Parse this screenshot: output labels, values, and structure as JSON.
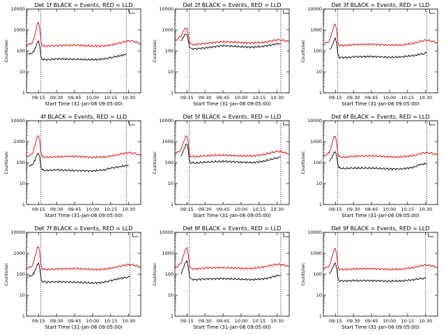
{
  "colors": {
    "events": "#000000",
    "lld": "#e00000",
    "axis": "#000000",
    "background": "#ffffff"
  },
  "chart_data": [
    {
      "type": "line",
      "title": "Det 1f BLACK = Events, RED = LLD",
      "xlabel": "Start Time (31-Jan-06 09:05:00)",
      "ylabel": "Counts/sec",
      "yscale": "log",
      "ylim": [
        1,
        10000
      ],
      "xlim": [
        "09:05",
        "10:40"
      ],
      "xticks": [
        "09:15",
        "09:30",
        "09:45",
        "10:00",
        "10:15",
        "10:30"
      ],
      "yticks": [
        "1",
        "10",
        "100",
        "1000",
        "10000"
      ],
      "markers": [
        "09:17",
        "10:28"
      ],
      "series": [
        {
          "name": "Events",
          "x": [
            "09:07",
            "09:10",
            "09:12",
            "09:14",
            "09:15",
            "09:16",
            "09:17",
            "09:18",
            "09:22",
            "09:30",
            "09:45",
            "10:00",
            "10:10",
            "10:15",
            "10:20",
            "10:26",
            "10:28"
          ],
          "values": [
            70,
            80,
            120,
            250,
            280,
            170,
            60,
            40,
            38,
            42,
            40,
            38,
            42,
            48,
            55,
            65,
            70
          ]
        },
        {
          "name": "LLD",
          "x": [
            "09:05",
            "09:10",
            "09:12",
            "09:14",
            "09:15",
            "09:16",
            "09:17",
            "09:18",
            "09:22",
            "09:30",
            "09:45",
            "10:00",
            "10:10",
            "10:20",
            "10:25",
            "10:30",
            "10:35",
            "10:40"
          ],
          "values": [
            180,
            250,
            600,
            1900,
            2100,
            1200,
            300,
            180,
            170,
            180,
            190,
            170,
            175,
            220,
            260,
            310,
            280,
            220
          ]
        }
      ]
    },
    {
      "type": "line",
      "title": "Det 2f BLACK = Events, RED = LLD",
      "xlabel": "Start Time (31-Jan-06 09:05:00)",
      "ylabel": "Counts/sec",
      "yscale": "log",
      "ylim": [
        1,
        10000
      ],
      "xlim": [
        "09:05",
        "10:40"
      ],
      "xticks": [
        "09:15",
        "09:30",
        "09:45",
        "10:00",
        "10:15",
        "10:30"
      ],
      "yticks": [
        "1",
        "10",
        "100",
        "1000",
        "10000"
      ],
      "markers": [
        "09:17",
        "10:33"
      ],
      "series": [
        {
          "name": "Events",
          "x": [
            "09:10",
            "09:12",
            "09:14",
            "09:15",
            "09:16",
            "09:17",
            "09:18",
            "09:22",
            "09:30",
            "09:45",
            "10:00",
            "10:10",
            "10:20",
            "10:28",
            "10:33"
          ],
          "values": [
            300,
            450,
            700,
            600,
            350,
            160,
            130,
            125,
            140,
            180,
            160,
            150,
            170,
            210,
            230
          ]
        },
        {
          "name": "LLD",
          "x": [
            "09:05",
            "09:10",
            "09:12",
            "09:14",
            "09:15",
            "09:16",
            "09:17",
            "09:18",
            "09:22",
            "09:30",
            "09:45",
            "10:00",
            "10:10",
            "10:20",
            "10:25",
            "10:30",
            "10:35",
            "10:40"
          ],
          "values": [
            300,
            500,
            900,
            1300,
            1200,
            700,
            300,
            210,
            200,
            230,
            280,
            250,
            240,
            260,
            300,
            340,
            320,
            280
          ]
        }
      ]
    },
    {
      "type": "line",
      "title": "Det 3f BLACK = Events, RED = LLD",
      "xlabel": "Start Time (31-Jan-06 09:05:00)",
      "ylabel": "Counts/sec",
      "yscale": "log",
      "ylim": [
        1,
        10000
      ],
      "xlim": [
        "09:05",
        "10:40"
      ],
      "xticks": [
        "09:15",
        "09:30",
        "09:45",
        "10:00",
        "10:15",
        "10:30"
      ],
      "yticks": [
        "1",
        "10",
        "100",
        "1000",
        "10000"
      ],
      "markers": [
        "09:17",
        "10:31"
      ],
      "series": [
        {
          "name": "Events",
          "x": [
            "09:10",
            "09:12",
            "09:14",
            "09:15",
            "09:16",
            "09:17",
            "09:18",
            "09:22",
            "09:30",
            "09:45",
            "10:00",
            "10:10",
            "10:20",
            "10:26",
            "10:31"
          ],
          "values": [
            110,
            160,
            320,
            400,
            230,
            80,
            50,
            48,
            52,
            55,
            50,
            52,
            60,
            70,
            80
          ]
        },
        {
          "name": "LLD",
          "x": [
            "09:05",
            "09:10",
            "09:12",
            "09:14",
            "09:15",
            "09:16",
            "09:17",
            "09:18",
            "09:22",
            "09:30",
            "09:45",
            "10:00",
            "10:10",
            "10:20",
            "10:25",
            "10:30",
            "10:35",
            "10:40"
          ],
          "values": [
            200,
            300,
            700,
            1700,
            1800,
            1000,
            280,
            190,
            180,
            200,
            210,
            190,
            190,
            230,
            280,
            330,
            300,
            240
          ]
        }
      ]
    },
    {
      "type": "line",
      "title": "4f BLACK = Events, RED = LLD",
      "xlabel": "Start Time (31-Jan-06 09:05:00)",
      "ylabel": "Counts/sec",
      "yscale": "log",
      "ylim": [
        1,
        10000
      ],
      "xlim": [
        "09:05",
        "10:40"
      ],
      "xticks": [
        "09:15",
        "09:30",
        "09:45",
        "10:00",
        "10:15",
        "10:30"
      ],
      "yticks": [
        "1",
        "10",
        "100",
        "1000",
        "10000"
      ],
      "markers": [
        "09:17",
        "10:28"
      ],
      "series": [
        {
          "name": "Events",
          "x": [
            "09:07",
            "09:10",
            "09:12",
            "09:14",
            "09:15",
            "09:16",
            "09:17",
            "09:18",
            "09:22",
            "09:30",
            "09:45",
            "10:00",
            "10:10",
            "10:15",
            "10:20",
            "10:26",
            "10:30"
          ],
          "values": [
            70,
            80,
            130,
            260,
            300,
            180,
            60,
            45,
            42,
            45,
            42,
            40,
            45,
            55,
            60,
            70,
            75
          ]
        },
        {
          "name": "LLD",
          "x": [
            "09:05",
            "09:10",
            "09:12",
            "09:14",
            "09:15",
            "09:16",
            "09:17",
            "09:18",
            "09:22",
            "09:30",
            "09:45",
            "10:00",
            "10:10",
            "10:20",
            "10:25",
            "10:30",
            "10:35",
            "10:40"
          ],
          "values": [
            190,
            260,
            650,
            1900,
            2000,
            1100,
            290,
            190,
            180,
            190,
            200,
            180,
            185,
            230,
            270,
            300,
            280,
            220
          ]
        }
      ]
    },
    {
      "type": "line",
      "title": "Det 5f BLACK = Events, RED = LLD",
      "xlabel": "Start Time (31-Jan-06 09:05:00)",
      "ylabel": "Counts/sec",
      "yscale": "log",
      "ylim": [
        1,
        10000
      ],
      "xlim": [
        "09:05",
        "10:40"
      ],
      "xticks": [
        "09:15",
        "09:30",
        "09:45",
        "10:00",
        "10:15",
        "10:30"
      ],
      "yticks": [
        "1",
        "10",
        "100",
        "1000",
        "10000"
      ],
      "markers": [
        "09:17",
        "10:33"
      ],
      "series": [
        {
          "name": "Events",
          "x": [
            "09:10",
            "09:12",
            "09:14",
            "09:15",
            "09:16",
            "09:17",
            "09:18",
            "09:22",
            "09:30",
            "09:45",
            "10:00",
            "10:10",
            "10:20",
            "10:28",
            "10:33"
          ],
          "values": [
            200,
            350,
            700,
            750,
            400,
            130,
            100,
            95,
            105,
            115,
            105,
            100,
            120,
            160,
            180
          ]
        },
        {
          "name": "LLD",
          "x": [
            "09:05",
            "09:10",
            "09:12",
            "09:14",
            "09:15",
            "09:16",
            "09:17",
            "09:18",
            "09:22",
            "09:30",
            "09:45",
            "10:00",
            "10:10",
            "10:20",
            "10:25",
            "10:30",
            "10:35",
            "10:40"
          ],
          "values": [
            250,
            400,
            900,
            1700,
            1800,
            1000,
            280,
            200,
            190,
            210,
            230,
            210,
            210,
            250,
            300,
            350,
            320,
            260
          ]
        }
      ]
    },
    {
      "type": "line",
      "title": "Det 6f BLACK = Events, RED = LLD",
      "xlabel": "Start Time (31-Jan-06 09:05:00)",
      "ylabel": "Counts/sec",
      "yscale": "log",
      "ylim": [
        1,
        10000
      ],
      "xlim": [
        "09:05",
        "10:40"
      ],
      "xticks": [
        "09:15",
        "09:30",
        "09:45",
        "10:00",
        "10:15",
        "10:30"
      ],
      "yticks": [
        "1",
        "10",
        "100",
        "1000",
        "10000"
      ],
      "markers": [
        "09:17",
        "10:31"
      ],
      "series": [
        {
          "name": "Events",
          "x": [
            "09:10",
            "09:12",
            "09:14",
            "09:15",
            "09:16",
            "09:17",
            "09:18",
            "09:22",
            "09:30",
            "09:45",
            "10:00",
            "10:10",
            "10:20",
            "10:25",
            "10:31"
          ],
          "values": [
            120,
            170,
            320,
            350,
            220,
            80,
            55,
            52,
            55,
            55,
            50,
            50,
            60,
            80,
            90
          ]
        },
        {
          "name": "LLD",
          "x": [
            "09:05",
            "09:10",
            "09:12",
            "09:14",
            "09:15",
            "09:16",
            "09:17",
            "09:18",
            "09:22",
            "09:30",
            "09:45",
            "10:00",
            "10:10",
            "10:20",
            "10:25",
            "10:30",
            "10:35",
            "10:40"
          ],
          "values": [
            200,
            300,
            700,
            1800,
            1900,
            1000,
            280,
            190,
            180,
            200,
            210,
            190,
            190,
            220,
            260,
            300,
            280,
            230
          ]
        }
      ]
    },
    {
      "type": "line",
      "title": "Det 7f BLACK = Events, RED = LLD",
      "xlabel": "Start Time (31-Jan-06 09:05:00)",
      "ylabel": "Counts/sec",
      "yscale": "log",
      "ylim": [
        1,
        10000
      ],
      "xlim": [
        "09:05",
        "10:40"
      ],
      "xticks": [
        "09:15",
        "09:30",
        "09:45",
        "10:00",
        "10:15",
        "10:30"
      ],
      "yticks": [
        "1",
        "10",
        "100",
        "1000",
        "10000"
      ],
      "markers": [
        "09:17",
        "10:31"
      ],
      "series": [
        {
          "name": "Events",
          "x": [
            "09:07",
            "09:10",
            "09:12",
            "09:14",
            "09:15",
            "09:16",
            "09:17",
            "09:18",
            "09:22",
            "09:30",
            "09:45",
            "10:00",
            "10:10",
            "10:15",
            "10:20",
            "10:26",
            "10:31"
          ],
          "values": [
            80,
            90,
            140,
            280,
            320,
            190,
            65,
            45,
            42,
            44,
            42,
            38,
            42,
            50,
            58,
            68,
            75
          ]
        },
        {
          "name": "LLD",
          "x": [
            "09:05",
            "09:10",
            "09:12",
            "09:14",
            "09:15",
            "09:16",
            "09:17",
            "09:18",
            "09:22",
            "09:30",
            "09:45",
            "10:00",
            "10:10",
            "10:20",
            "10:25",
            "10:30",
            "10:35",
            "10:40"
          ],
          "values": [
            180,
            260,
            650,
            1800,
            1900,
            1050,
            290,
            180,
            170,
            180,
            190,
            170,
            175,
            220,
            260,
            290,
            270,
            220
          ]
        }
      ]
    },
    {
      "type": "line",
      "title": "Det 8f BLACK = Events, RED = LLD",
      "xlabel": "Start Time (31-Jan-06 09:05:00)",
      "ylabel": "Counts/sec",
      "yscale": "log",
      "ylim": [
        1,
        10000
      ],
      "xlim": [
        "09:05",
        "10:40"
      ],
      "xticks": [
        "09:15",
        "09:30",
        "09:45",
        "10:00",
        "10:15",
        "10:30"
      ],
      "yticks": [
        "1",
        "10",
        "100",
        "1000",
        "10000"
      ],
      "markers": [
        "09:17",
        "10:33"
      ],
      "series": [
        {
          "name": "Events",
          "x": [
            "09:10",
            "09:12",
            "09:14",
            "09:15",
            "09:16",
            "09:17",
            "09:18",
            "09:22",
            "09:30",
            "09:45",
            "10:00",
            "10:10",
            "10:20",
            "10:28",
            "10:33"
          ],
          "values": [
            100,
            200,
            400,
            450,
            250,
            90,
            60,
            55,
            60,
            62,
            58,
            55,
            62,
            80,
            95
          ]
        },
        {
          "name": "LLD",
          "x": [
            "09:05",
            "09:10",
            "09:12",
            "09:14",
            "09:15",
            "09:16",
            "09:17",
            "09:18",
            "09:22",
            "09:30",
            "09:45",
            "10:00",
            "10:10",
            "10:20",
            "10:25",
            "10:30",
            "10:35",
            "10:40"
          ],
          "values": [
            200,
            320,
            750,
            1800,
            1900,
            1000,
            280,
            190,
            180,
            200,
            210,
            190,
            190,
            230,
            270,
            300,
            280,
            230
          ]
        }
      ]
    },
    {
      "type": "line",
      "title": "Det 9f BLACK = Events, RED = LLD",
      "xlabel": "Start Time (31-Jan-06 09:05:00)",
      "ylabel": "Counts/sec",
      "yscale": "log",
      "ylim": [
        1,
        10000
      ],
      "xlim": [
        "09:05",
        "10:40"
      ],
      "xticks": [
        "09:15",
        "09:30",
        "09:45",
        "10:00",
        "10:15",
        "10:30"
      ],
      "yticks": [
        "1",
        "10",
        "100",
        "1000",
        "10000"
      ],
      "markers": [
        "09:17",
        "10:30"
      ],
      "series": [
        {
          "name": "Events",
          "x": [
            "09:10",
            "09:12",
            "09:14",
            "09:15",
            "09:16",
            "09:17",
            "09:18",
            "09:22",
            "09:30",
            "09:45",
            "10:00",
            "10:10",
            "10:20",
            "10:25",
            "10:30"
          ],
          "values": [
            100,
            170,
            300,
            320,
            200,
            75,
            50,
            48,
            50,
            50,
            47,
            48,
            55,
            62,
            65
          ]
        },
        {
          "name": "LLD",
          "x": [
            "09:05",
            "09:10",
            "09:12",
            "09:14",
            "09:15",
            "09:16",
            "09:17",
            "09:18",
            "09:22",
            "09:30",
            "09:45",
            "10:00",
            "10:10",
            "10:20",
            "10:25",
            "10:30",
            "10:35",
            "10:40"
          ],
          "values": [
            180,
            250,
            600,
            1500,
            1600,
            900,
            260,
            180,
            170,
            180,
            190,
            170,
            175,
            210,
            250,
            280,
            260,
            210
          ]
        }
      ]
    }
  ]
}
